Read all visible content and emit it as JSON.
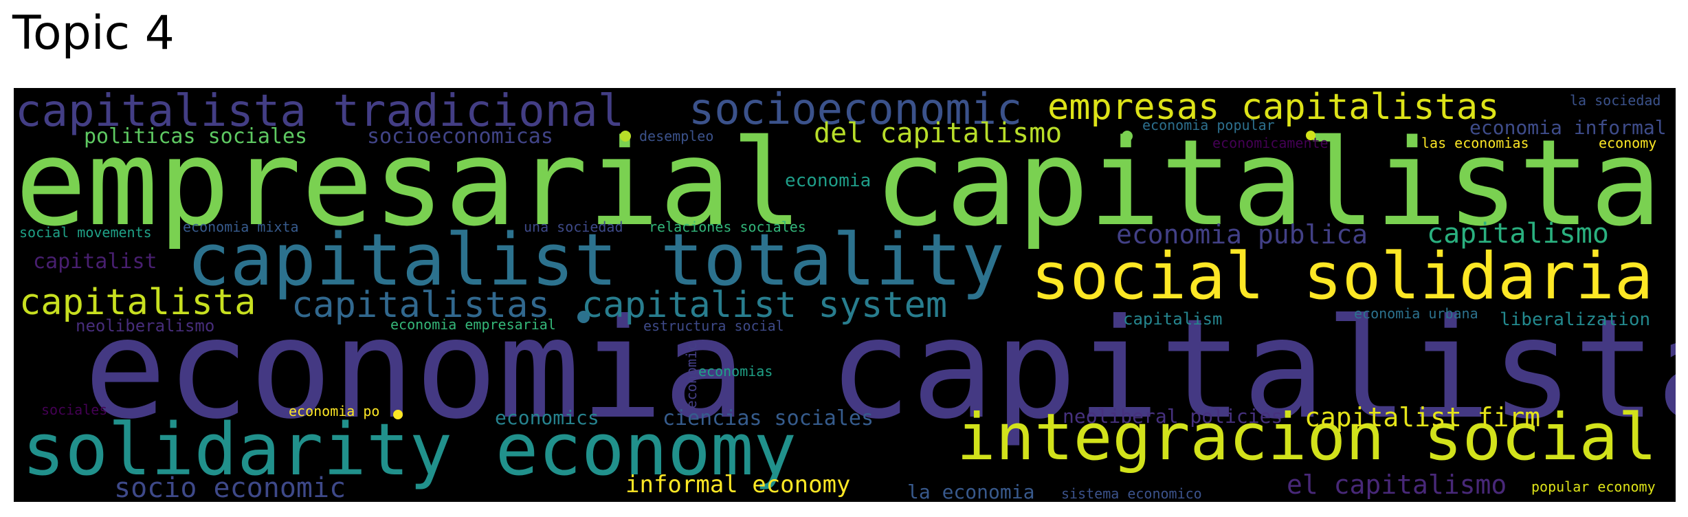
{
  "title": "Topic 4",
  "palette": {
    "background": "#000000",
    "title_color": "#000000"
  },
  "words": [
    {
      "text": "empresarial capitalista",
      "color": "#7ad151"
    },
    {
      "text": "economia capitalista",
      "color": "#443983"
    },
    {
      "text": "capitalist totality",
      "color": "#2c728e"
    },
    {
      "text": "solidarity economy",
      "color": "#21918c"
    },
    {
      "text": "social solidaria",
      "color": "#fde725"
    },
    {
      "text": "integracion social",
      "color": "#d2e21b"
    },
    {
      "text": "capitalista tradicional",
      "color": "#433e85"
    },
    {
      "text": "socioeconomic",
      "color": "#3b528b"
    },
    {
      "text": "empresas capitalistas",
      "color": "#dde318"
    },
    {
      "text": "del capitalismo",
      "color": "#b8de29"
    },
    {
      "text": "capitalista",
      "color": "#c8e020"
    },
    {
      "text": "capitalistas",
      "color": "#31688e"
    },
    {
      "text": "capitalist system",
      "color": "#287d8e"
    },
    {
      "text": "economia publica",
      "color": "#424086"
    },
    {
      "text": "capitalismo",
      "color": "#2ab07f"
    },
    {
      "text": "politicas sociales",
      "color": "#5ec962"
    },
    {
      "text": "socioeconomicas",
      "color": "#414487"
    },
    {
      "text": "capitalist firm",
      "color": "#e5e419"
    },
    {
      "text": "el capitalismo",
      "color": "#482878"
    },
    {
      "text": "socio economic",
      "color": "#3e4989"
    },
    {
      "text": "informal economy",
      "color": "#fde725"
    },
    {
      "text": "economia informal",
      "color": "#3e4c8a"
    },
    {
      "text": "ciencias sociales",
      "color": "#365c8d"
    },
    {
      "text": "economics",
      "color": "#26828e"
    },
    {
      "text": "neoliberal policies",
      "color": "#46317e"
    },
    {
      "text": "la economia",
      "color": "#38598c"
    },
    {
      "text": "economia",
      "color": "#1f9e89"
    },
    {
      "text": "capitalist",
      "color": "#481f70"
    },
    {
      "text": "neoliberalismo",
      "color": "#472d7b"
    },
    {
      "text": "liberalization",
      "color": "#23898e"
    },
    {
      "text": "capitalism",
      "color": "#25858e"
    },
    {
      "text": "la sociedad",
      "color": "#3b528b"
    },
    {
      "text": "desempleo",
      "color": "#3b528b"
    },
    {
      "text": "economia popular",
      "color": "#2d708e"
    },
    {
      "text": "economicamente",
      "color": "#440154"
    },
    {
      "text": "las economias",
      "color": "#fde725"
    },
    {
      "text": "economy",
      "color": "#fde725"
    },
    {
      "text": "social movements",
      "color": "#1fa187"
    },
    {
      "text": "economia mixta",
      "color": "#375b8d"
    },
    {
      "text": "una sociedad",
      "color": "#3e4a89"
    },
    {
      "text": "relaciones sociales",
      "color": "#32b67a"
    },
    {
      "text": "economia empresarial",
      "color": "#35b779"
    },
    {
      "text": "estructura social",
      "color": "#3e4a89"
    },
    {
      "text": "economia urbana",
      "color": "#2c728e"
    },
    {
      "text": "economic",
      "color": "#433e85"
    },
    {
      "text": "economias",
      "color": "#1fa187"
    },
    {
      "text": "sociales",
      "color": "#440154"
    },
    {
      "text": "economia po",
      "color": "#fde725"
    },
    {
      "text": "sistema economico",
      "color": "#3b528b"
    },
    {
      "text": "popular economy",
      "color": "#dde318"
    }
  ]
}
